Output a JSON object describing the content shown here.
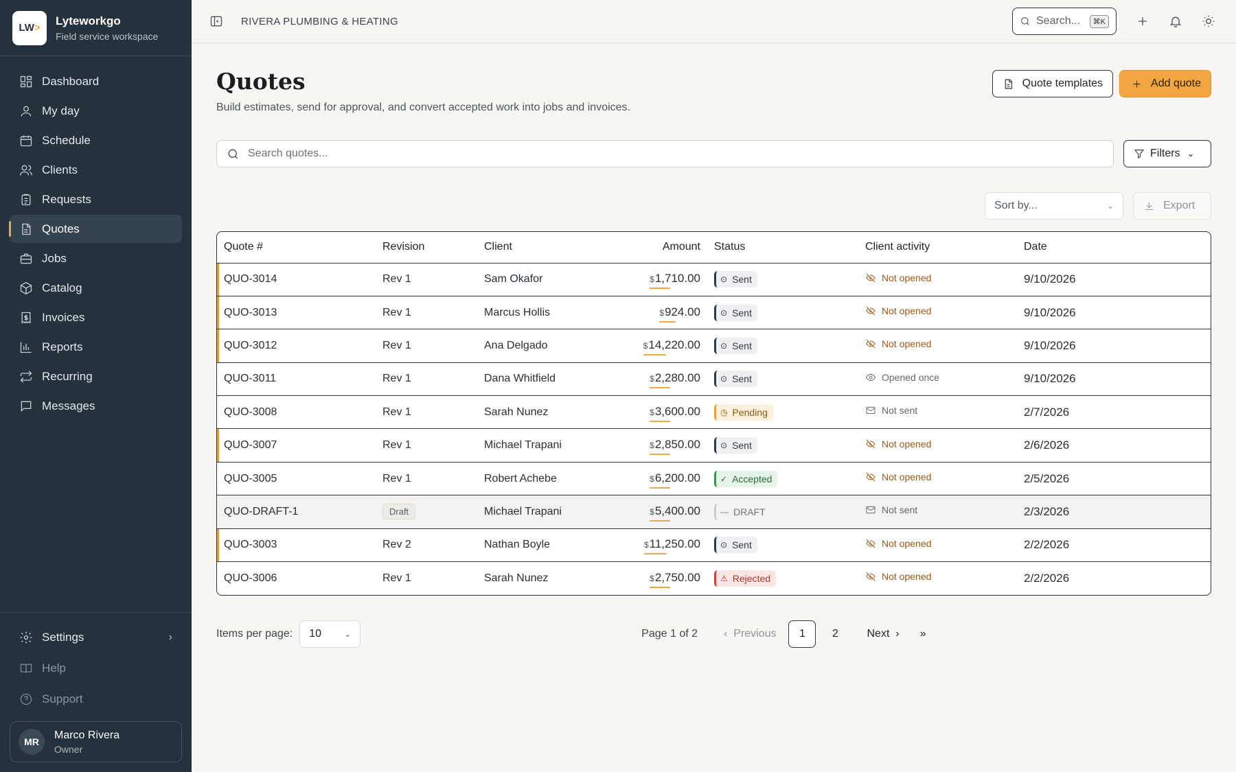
{
  "brand": {
    "logo_text": "LW",
    "name": "Lyteworkgo",
    "subtitle": "Field service workspace"
  },
  "sidebar": {
    "items": [
      {
        "label": "Dashboard",
        "icon": "dashboard-icon",
        "active": false
      },
      {
        "label": "My day",
        "icon": "user-icon",
        "active": false
      },
      {
        "label": "Schedule",
        "icon": "calendar-icon",
        "active": false
      },
      {
        "label": "Clients",
        "icon": "users-icon",
        "active": false
      },
      {
        "label": "Requests",
        "icon": "clipboard-icon",
        "active": false
      },
      {
        "label": "Quotes",
        "icon": "document-icon",
        "active": true
      },
      {
        "label": "Jobs",
        "icon": "briefcase-icon",
        "active": false
      },
      {
        "label": "Catalog",
        "icon": "package-icon",
        "active": false
      },
      {
        "label": "Invoices",
        "icon": "receipt-icon",
        "active": false
      },
      {
        "label": "Reports",
        "icon": "bar-chart-icon",
        "active": false
      },
      {
        "label": "Recurring",
        "icon": "repeat-icon",
        "active": false
      },
      {
        "label": "Messages",
        "icon": "message-icon",
        "active": false
      }
    ],
    "settings_label": "Settings",
    "help_label": "Help",
    "support_label": "Support",
    "user": {
      "initials": "MR",
      "name": "Marco Rivera",
      "role": "Owner"
    }
  },
  "topbar": {
    "company": "RIVERA PLUMBING & HEATING",
    "search_placeholder": "Search...",
    "shortcut": "⌘K"
  },
  "page": {
    "title": "Quotes",
    "subtitle": "Build estimates, send for approval, and convert accepted work into jobs and invoices.",
    "templates_label": "Quote templates",
    "add_label": "Add quote",
    "search_placeholder": "Search quotes...",
    "filters_label": "Filters",
    "sort_placeholder": "Sort by...",
    "export_label": "Export"
  },
  "table": {
    "headers": {
      "quote": "Quote #",
      "revision": "Revision",
      "client": "Client",
      "amount": "Amount",
      "status": "Status",
      "activity": "Client activity",
      "date": "Date"
    },
    "currency": "$",
    "rows": [
      {
        "quote": "QUO-3014",
        "revision": "Rev 1",
        "client": "Sam Okafor",
        "amount": "1,710.00",
        "status": "Sent",
        "activity": "Not opened",
        "date": "9/10/2026"
      },
      {
        "quote": "QUO-3013",
        "revision": "Rev 1",
        "client": "Marcus Hollis",
        "amount": "924.00",
        "status": "Sent",
        "activity": "Not opened",
        "date": "9/10/2026"
      },
      {
        "quote": "QUO-3012",
        "revision": "Rev 1",
        "client": "Ana Delgado",
        "amount": "14,220.00",
        "status": "Sent",
        "activity": "Not opened",
        "date": "9/10/2026"
      },
      {
        "quote": "QUO-3011",
        "revision": "Rev 1",
        "client": "Dana Whitfield",
        "amount": "2,280.00",
        "status": "Sent",
        "activity": "Opened once",
        "date": "9/10/2026"
      },
      {
        "quote": "QUO-3008",
        "revision": "Rev 1",
        "client": "Sarah Nunez",
        "amount": "3,600.00",
        "status": "Pending",
        "activity": "Not sent",
        "date": "2/7/2026"
      },
      {
        "quote": "QUO-3007",
        "revision": "Rev 1",
        "client": "Michael Trapani",
        "amount": "2,850.00",
        "status": "Sent",
        "activity": "Not opened",
        "date": "2/6/2026"
      },
      {
        "quote": "QUO-3005",
        "revision": "Rev 1",
        "client": "Robert Achebe",
        "amount": "6,200.00",
        "status": "Accepted",
        "activity": "Not opened",
        "date": "2/5/2026"
      },
      {
        "quote": "QUO-DRAFT-1",
        "revision": "Draft",
        "client": "Michael Trapani",
        "amount": "5,400.00",
        "status": "DRAFT",
        "activity": "Not sent",
        "date": "2/3/2026"
      },
      {
        "quote": "QUO-3003",
        "revision": "Rev 2",
        "client": "Nathan Boyle",
        "amount": "11,250.00",
        "status": "Sent",
        "activity": "Not opened",
        "date": "2/2/2026"
      },
      {
        "quote": "QUO-3006",
        "revision": "Rev 1",
        "client": "Sarah Nunez",
        "amount": "2,750.00",
        "status": "Rejected",
        "activity": "Not opened",
        "date": "2/2/2026"
      }
    ]
  },
  "pagination": {
    "items_per_page_label": "Items per page:",
    "items_per_page": "10",
    "page_info": "Page 1 of 2",
    "previous": "Previous",
    "pages": [
      "1",
      "2"
    ],
    "next": "Next",
    "last": "»"
  },
  "colors": {
    "accent": "#f2a541",
    "sidebar": "#25313d"
  }
}
